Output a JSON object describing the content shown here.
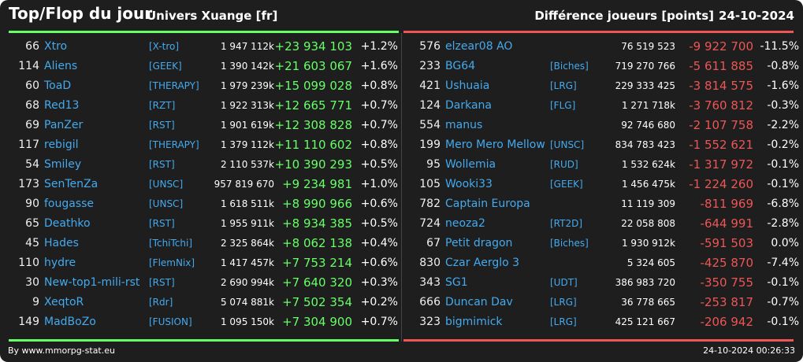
{
  "header": {
    "title": "Top/Flop du jour",
    "univers": "Univers Xuange [fr]",
    "metric": "Différence joueurs [points]",
    "date": "24-10-2024"
  },
  "colors": {
    "up": "#66ff66",
    "down": "#ee5555",
    "link": "#44aaee",
    "background": "#1e1e1e"
  },
  "top": [
    {
      "rank": "66",
      "name": "Xtro",
      "guild": "[X-tro]",
      "score": "1 947 112k",
      "diff": "+23 934 103",
      "pct": "+1.2%"
    },
    {
      "rank": "114",
      "name": "Aliens",
      "guild": "[GEEK]",
      "score": "1 390 142k",
      "diff": "+21 603 067",
      "pct": "+1.6%"
    },
    {
      "rank": "60",
      "name": "ToaD",
      "guild": "[THERAPY]",
      "score": "1 979 239k",
      "diff": "+15 099 028",
      "pct": "+0.8%"
    },
    {
      "rank": "68",
      "name": "Red13",
      "guild": "[RZT]",
      "score": "1 922 313k",
      "diff": "+12 665 771",
      "pct": "+0.7%"
    },
    {
      "rank": "69",
      "name": "PanZer",
      "guild": "[RST]",
      "score": "1 901 619k",
      "diff": "+12 308 828",
      "pct": "+0.7%"
    },
    {
      "rank": "117",
      "name": "rebigil",
      "guild": "[THERAPY]",
      "score": "1 379 112k",
      "diff": "+11 110 602",
      "pct": "+0.8%"
    },
    {
      "rank": "54",
      "name": "Smiley",
      "guild": "[RST]",
      "score": "2 110 537k",
      "diff": "+10 390 293",
      "pct": "+0.5%"
    },
    {
      "rank": "173",
      "name": "SenTenZa",
      "guild": "[UNSC]",
      "score": "957 819 670",
      "diff": "+9 234 981",
      "pct": "+1.0%"
    },
    {
      "rank": "90",
      "name": "fougasse",
      "guild": "[UNSC]",
      "score": "1 618 511k",
      "diff": "+8 990 966",
      "pct": "+0.6%"
    },
    {
      "rank": "65",
      "name": "Deathko",
      "guild": "[RST]",
      "score": "1 955 911k",
      "diff": "+8 934 385",
      "pct": "+0.5%"
    },
    {
      "rank": "45",
      "name": "Hades",
      "guild": "[TchiTchi]",
      "score": "2 325 864k",
      "diff": "+8 062 138",
      "pct": "+0.4%"
    },
    {
      "rank": "110",
      "name": "hydre",
      "guild": "[FlemNix]",
      "score": "1 417 457k",
      "diff": "+7 753 214",
      "pct": "+0.6%"
    },
    {
      "rank": "30",
      "name": "New-top1-mili-rst",
      "guild": "[RST]",
      "score": "2 690 994k",
      "diff": "+7 640 320",
      "pct": "+0.3%"
    },
    {
      "rank": "9",
      "name": "XeqtoR",
      "guild": "[Rdr]",
      "score": "5 074 881k",
      "diff": "+7 502 354",
      "pct": "+0.2%"
    },
    {
      "rank": "149",
      "name": "MadBoZo",
      "guild": "[FUSION]",
      "score": "1 095 150k",
      "diff": "+7 304 900",
      "pct": "+0.7%"
    }
  ],
  "flop": [
    {
      "rank": "576",
      "name": "elzear08 AO",
      "guild": "",
      "score": "76 519 523",
      "diff": "-9 922 700",
      "pct": "-11.5%"
    },
    {
      "rank": "233",
      "name": "BG64",
      "guild": "[Biches]",
      "score": "719 270 766",
      "diff": "-5 611 885",
      "pct": "-0.8%"
    },
    {
      "rank": "421",
      "name": "Ushuaia",
      "guild": "[LRG]",
      "score": "229 333 425",
      "diff": "-3 814 575",
      "pct": "-1.6%"
    },
    {
      "rank": "124",
      "name": "Darkana",
      "guild": "[FLG]",
      "score": "1 271 718k",
      "diff": "-3 760 812",
      "pct": "-0.3%"
    },
    {
      "rank": "554",
      "name": "manus",
      "guild": "",
      "score": "92 746 680",
      "diff": "-2 107 758",
      "pct": "-2.2%"
    },
    {
      "rank": "199",
      "name": "Mero Mero Mellow",
      "guild": "[UNSC]",
      "score": "834 783 423",
      "diff": "-1 552 621",
      "pct": "-0.2%"
    },
    {
      "rank": "95",
      "name": "Wollemia",
      "guild": "[RUD]",
      "score": "1 532 624k",
      "diff": "-1 317 972",
      "pct": "-0.1%"
    },
    {
      "rank": "105",
      "name": "Wooki33",
      "guild": "[GEEK]",
      "score": "1 456 475k",
      "diff": "-1 224 260",
      "pct": "-0.1%"
    },
    {
      "rank": "782",
      "name": "Captain Europa",
      "guild": "",
      "score": "11 119 309",
      "diff": "-811 969",
      "pct": "-6.8%"
    },
    {
      "rank": "724",
      "name": "neoza2",
      "guild": "[RT2D]",
      "score": "22 058 808",
      "diff": "-644 991",
      "pct": "-2.8%"
    },
    {
      "rank": "67",
      "name": "Petit dragon",
      "guild": "[Biches]",
      "score": "1 930 912k",
      "diff": "-591 503",
      "pct": "0.0%"
    },
    {
      "rank": "830",
      "name": "Czar Aerglo 3",
      "guild": "",
      "score": "5 324 605",
      "diff": "-425 870",
      "pct": "-7.4%"
    },
    {
      "rank": "343",
      "name": "SG1",
      "guild": "[UDT]",
      "score": "386 983 720",
      "diff": "-350 755",
      "pct": "-0.1%"
    },
    {
      "rank": "666",
      "name": "Duncan Dav",
      "guild": "[LRG]",
      "score": "36 778 665",
      "diff": "-253 817",
      "pct": "-0.7%"
    },
    {
      "rank": "323",
      "name": "bigmimick",
      "guild": "[LRG]",
      "score": "425 121 667",
      "diff": "-206 942",
      "pct": "-0.1%"
    }
  ],
  "footer": {
    "source": "By www.mmorpg-stat.eu",
    "timestamp": "24-10-2024 00:26:33"
  }
}
